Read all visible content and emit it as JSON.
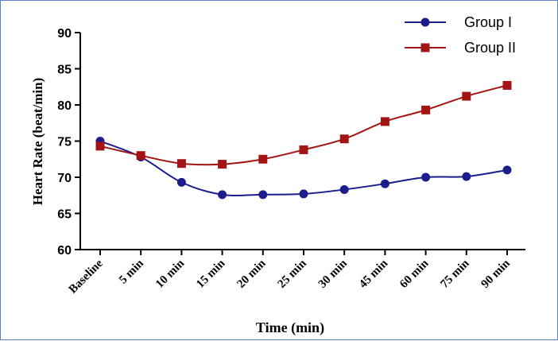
{
  "chart_data": {
    "type": "line",
    "title": "",
    "xlabel": "Time (min)",
    "ylabel": "Heart Rate (beat/min)",
    "categories": [
      "Baseline",
      "5 min",
      "10 min",
      "15 min",
      "20 min",
      "25 min",
      "30 min",
      "45 min",
      "60 min",
      "75 min",
      "90 min"
    ],
    "ylim": [
      60,
      90
    ],
    "yticks": [
      60,
      65,
      70,
      75,
      80,
      85,
      90
    ],
    "grid": false,
    "legend_position": "top-right",
    "series": [
      {
        "name": "Group I",
        "color": "#1c1c8c",
        "marker": "circle",
        "values": [
          75.0,
          72.8,
          69.3,
          67.6,
          67.6,
          67.7,
          68.3,
          69.1,
          70.0,
          70.1,
          71.0
        ]
      },
      {
        "name": "Group II",
        "color": "#a31515",
        "marker": "square",
        "values": [
          74.3,
          73.0,
          71.9,
          71.8,
          72.5,
          73.8,
          75.3,
          77.7,
          79.3,
          81.2,
          82.7
        ]
      }
    ]
  }
}
